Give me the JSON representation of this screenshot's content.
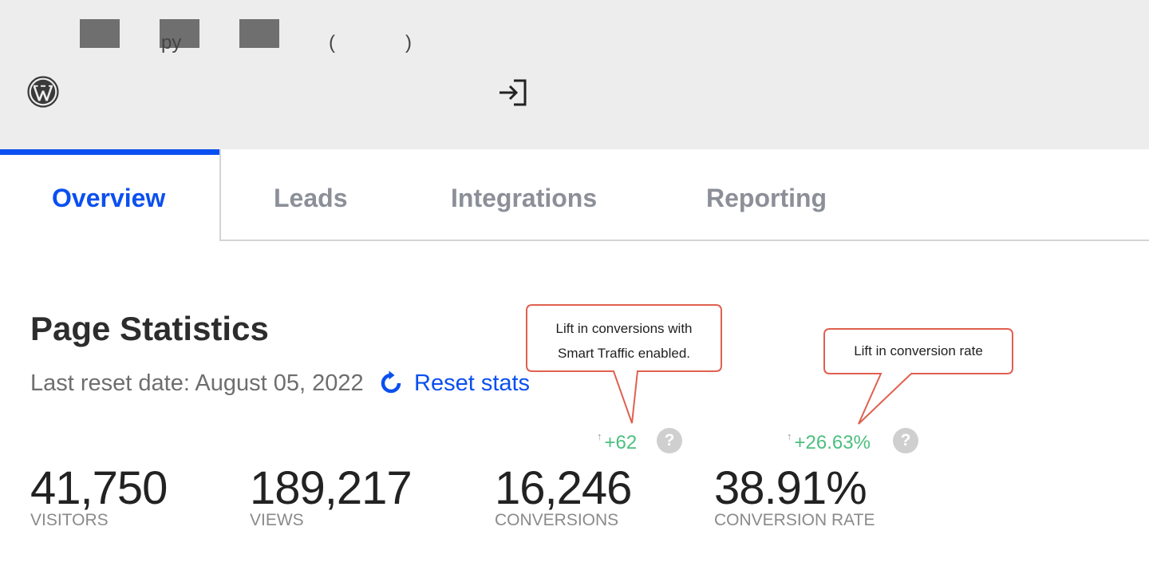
{
  "header": {
    "fragments": [
      "py",
      "(",
      ")"
    ],
    "icons": [
      "wordpress-icon",
      "exit-icon"
    ]
  },
  "tabs": [
    {
      "label": "Overview",
      "active": true
    },
    {
      "label": "Leads",
      "active": false
    },
    {
      "label": "Integrations",
      "active": false
    },
    {
      "label": "Reporting",
      "active": false
    }
  ],
  "stats": {
    "title": "Page Statistics",
    "reset_date": "Last reset date: August 05, 2022",
    "reset_label": "Reset stats",
    "items": [
      {
        "value": "41,750",
        "label": "VISITORS"
      },
      {
        "value": "189,217",
        "label": "VIEWS"
      },
      {
        "value": "16,246",
        "label": "CONVERSIONS",
        "lift": "+62"
      },
      {
        "value": "38.91%",
        "label": "CONVERSION RATE",
        "lift": "+26.63%"
      }
    ],
    "lift_arrow": "↑",
    "help_glyph": "?"
  },
  "callouts": [
    {
      "text": "Lift in conversions  with\nSmart Traffic enabled."
    },
    {
      "text": "Lift in conversion rate"
    }
  ],
  "colors": {
    "accent": "#0a4ff0",
    "lift_green": "#4cbf7e",
    "callout_border": "#e0604f",
    "header_bg": "#ededed"
  }
}
